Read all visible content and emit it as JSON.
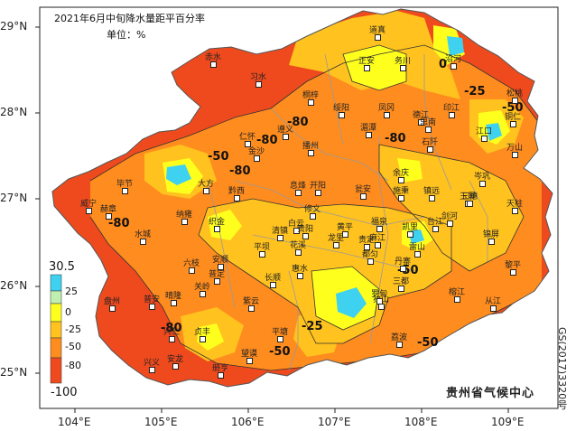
{
  "title": "2021年6月中旬降水量距平百分率",
  "unit_label": "单位：%",
  "agency": "贵州省气候中心",
  "map_approval_no": "GS(2017)3320号",
  "axes": {
    "x_ticks": [
      "104°E",
      "105°E",
      "106°E",
      "107°E",
      "108°E",
      "109°E"
    ],
    "y_ticks": [
      "29°N",
      "28°N",
      "27°N",
      "26°N",
      "25°N"
    ]
  },
  "legend": {
    "max": "30.5",
    "min": "-100",
    "labels": [
      "25",
      "0",
      "-25",
      "-50",
      "-80"
    ],
    "colors": [
      "#3fd1f0",
      "#c0f0b0",
      "#ffff1e",
      "#ffc21e",
      "#ff8c1e",
      "#ee4a1e"
    ]
  },
  "contour_labels": [
    "0",
    "-25",
    "-50",
    "-80"
  ],
  "cities": [
    "道真",
    "赤水",
    "习水",
    "正安",
    "务川",
    "沿河",
    "桐梓",
    "绥阳",
    "凤冈",
    "德江",
    "印江",
    "松桃",
    "湄潭",
    "思南",
    "江口",
    "铜仁",
    "仁怀",
    "金沙",
    "遵义",
    "播州",
    "石阡",
    "万山",
    "余庆",
    "毕节",
    "大方",
    "黔西",
    "息烽",
    "开阳",
    "瓮安",
    "施秉",
    "镇远",
    "岑巩",
    "玉屏",
    "威宁",
    "赫章",
    "纳雍",
    "织金",
    "修文",
    "白云",
    "贵阳",
    "清镇",
    "黄平",
    "凯里",
    "台江",
    "剑河",
    "三穗",
    "天柱",
    "锦屏",
    "水城",
    "六枝",
    "普定",
    "安顺",
    "平坝",
    "花溪",
    "龙里",
    "贵定",
    "福泉",
    "麻江",
    "都匀",
    "丹寨",
    "雷山",
    "榕江",
    "黎平",
    "从江",
    "盘州",
    "晴隆",
    "关岭",
    "紫云",
    "长顺",
    "惠水",
    "平塘",
    "独山",
    "三都",
    "荔波",
    "普安",
    "兴仁",
    "贞丰",
    "望谟",
    "罗甸",
    "兴义",
    "安龙",
    "册亨"
  ]
}
